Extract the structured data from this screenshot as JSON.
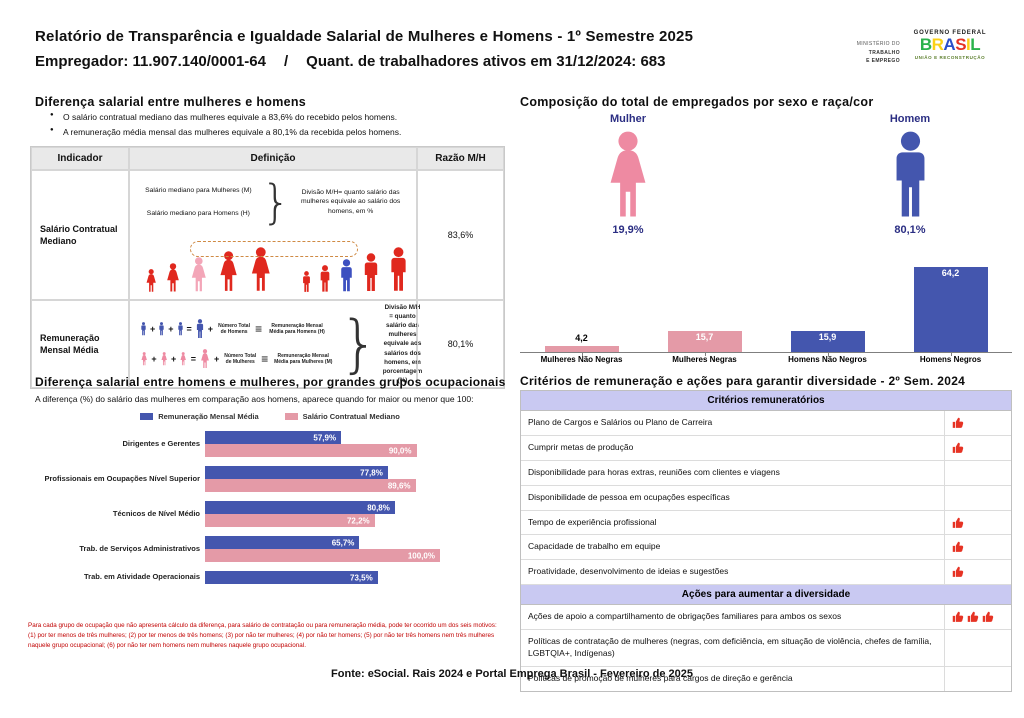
{
  "header": {
    "title": "Relatório de Transparência e Igualdade Salarial de Mulheres e Homens - 1º Semestre 2025",
    "employer": "Empregador: 11.907.140/0001-64",
    "separator": "/",
    "workers": "Quant. de trabalhadores ativos em 31/12/2024: 683",
    "ministry": {
      "line1": "MINISTÉRIO DO",
      "line2": "TRABALHO",
      "line3": "E EMPREGO"
    },
    "gov": {
      "top": "GOVERNO FEDERAL",
      "brand": "BRASIL",
      "brand_colors": [
        "#2bb24c",
        "#fcd116",
        "#2a4fc9",
        "#e63324",
        "#fcd116",
        "#2bb24c"
      ],
      "bottom": "UNIÃO E RECONSTRUÇÃO"
    }
  },
  "gap_section": {
    "title": "Diferença salarial entre mulheres e homens",
    "bullets": [
      "O salário contratual mediano das mulheres equivale a 83,6% do recebido pelos homens.",
      "A remuneração média mensal das mulheres equivale a 80,1% da recebida pelos homens."
    ],
    "table": {
      "headers": [
        "Indicador",
        "Definição",
        "Razão M/H"
      ],
      "row1": {
        "indicator": "Salário Contratual Mediano",
        "ratio": "83,6%",
        "label_women": "Salário mediano para Mulheres (M)",
        "label_men": "Salário mediano para Homens (H)",
        "note": "Divisão M/H= quanto salário das mulheres equivale ao salário dos homens, em %"
      },
      "row2": {
        "indicator": "Remuneração Mensal Média",
        "ratio": "80,1%",
        "men_count_label": "Número Total de Homens",
        "men_result_label": "Remuneração Mensal Média para Homens (H)",
        "women_count_label": "Número Total de Mulheres",
        "women_result_label": "Remuneração Mensal Média para Mulheres (M)",
        "note": "Divisão M/H = quanto salário das mulheres equivale aos salários dos homens, em porcentagem (%)"
      }
    },
    "ops": {
      "plus": "+",
      "equals": "=",
      "identical": "≡",
      "brace": "}"
    }
  },
  "composition_section": {
    "title": "Composição do total de empregados por sexo e raça/cor",
    "female": {
      "label": "Mulher",
      "value": "19,9%"
    },
    "male": {
      "label": "Homem",
      "value": "80,1%"
    }
  },
  "occupational_section": {
    "title": "Diferença salarial entre homens e mulheres, por grandes grupos ocupacionais",
    "subtitle": "A diferença (%) do salário das mulheres em comparação aos homens, aparece quando for maior ou menor que 100:",
    "footnote": "Para cada grupo de ocupação que não apresenta cálculo da diferença, para salário de contratação ou para remuneração média, pode ter ocorrido um dos seis motivos: (1) por ter menos de três mulheres; (2) por ter menos de três homens; (3) por não ter mulheres; (4) por não ter homens; (5) por não ter três homens nem três mulheres naquele grupo ocupacional; (6) por não ter nem homens nem mulheres naquele grupo ocupacional."
  },
  "criteria_section": {
    "title": "Critérios de remuneração e ações para garantir diversidade - 2º Sem. 2024",
    "groups": [
      {
        "header": "Critérios remuneratórios",
        "rows": [
          {
            "text": "Plano de Cargos e Salários ou Plano de Carreira",
            "icons": 1
          },
          {
            "text": "Cumprir metas de produção",
            "icons": 1
          },
          {
            "text": "Disponibilidade para horas extras, reuniões com clientes e viagens",
            "icons": 0
          },
          {
            "text": "Disponibilidade de pessoa em ocupações específicas",
            "icons": 0
          },
          {
            "text": "Tempo de experiência profissional",
            "icons": 1
          },
          {
            "text": "Capacidade de trabalho em equipe",
            "icons": 1
          },
          {
            "text": "Proatividade, desenvolvimento de ideias e sugestões",
            "icons": 1
          }
        ]
      },
      {
        "header": "Ações para aumentar a diversidade",
        "rows": [
          {
            "text": "Ações de apoio a compartilhamento de obrigações familiares para ambos os sexos",
            "icons": 3
          },
          {
            "text": "Políticas de contratação de mulheres (negras, com deficiência, em situação de violência, chefes de família, LGBTQIA+, Indígenas)",
            "icons": 0
          },
          {
            "text": "Políticas de promoção de mulheres para cargos de direção e gerência",
            "icons": 0
          }
        ]
      }
    ]
  },
  "footer": {
    "source": "Fonte: eSocial. Rais 2024 e Portal Emprega Brasil - Fevereiro de 2025"
  },
  "colors": {
    "blue": "#4456ae",
    "pink": "#e49aa7",
    "female_pink": "#ee8aa2",
    "navy": "#2b2e83",
    "red_figure": "#e0281e",
    "pink_highlight": "#f3a6b8",
    "blue_highlight": "#3d50c0",
    "thumb_red": "#e63324",
    "lavender": "#c9c9f2",
    "footnote_red": "#c00000"
  },
  "chart_data": [
    {
      "type": "bar",
      "title": "Composição do total de empregados por sexo e raça/cor",
      "categories": [
        "Mulheres Não Negras",
        "Mulheres Negras",
        "Homens Não Negros",
        "Homens Negros"
      ],
      "values": [
        4.2,
        15.7,
        15.9,
        64.2
      ],
      "labels": [
        "4,2",
        "15,7",
        "15,9",
        "64,2"
      ],
      "bar_colors": [
        "#e49aa7",
        "#e49aa7",
        "#4456ae",
        "#4456ae"
      ],
      "xlabel": "",
      "ylabel": "",
      "ylim": [
        0,
        70
      ],
      "grid": false,
      "legend_position": "none"
    },
    {
      "type": "bar-horizontal-grouped",
      "title": "Diferença salarial entre homens e mulheres, por grandes grupos ocupacionais",
      "categories": [
        "Dirigentes e Gerentes",
        "Profissionais em Ocupações Nível Superior",
        "Técnicos de Nível Médio",
        "Trab. de Serviços Administrativos",
        "Trab. em Atividade Operacionais"
      ],
      "series": [
        {
          "name": "Remuneração Mensal Média",
          "color": "#4456ae",
          "values": [
            57.9,
            77.8,
            80.8,
            65.7,
            73.5
          ],
          "labels": [
            "57,9%",
            "77,8%",
            "80,8%",
            "65,7%",
            "73,5%"
          ]
        },
        {
          "name": "Salário Contratual Mediano",
          "color": "#e49aa7",
          "values": [
            90.0,
            89.6,
            72.2,
            100.0,
            null
          ],
          "labels": [
            "90,0%",
            "89,6%",
            "72,2%",
            "100,0%",
            null
          ]
        }
      ],
      "xlim": [
        0,
        100
      ],
      "grid": false,
      "legend_position": "top"
    }
  ]
}
